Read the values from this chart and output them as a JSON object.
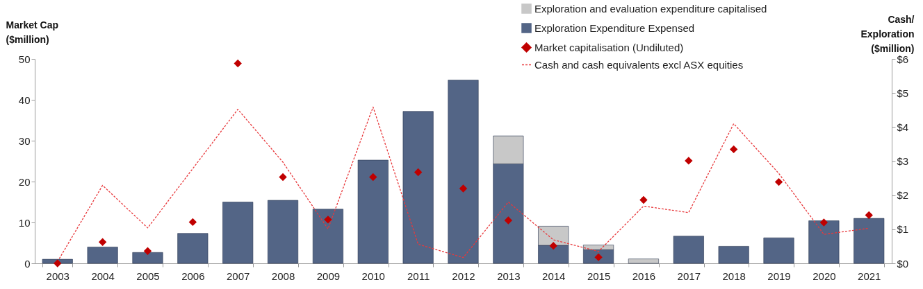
{
  "chart_data": {
    "type": "bar",
    "stacked": true,
    "legend": "top right",
    "categories": [
      "2003",
      "2004",
      "2005",
      "2006",
      "2007",
      "2008",
      "2009",
      "2010",
      "2011",
      "2012",
      "2013",
      "2014",
      "2015",
      "2016",
      "2017",
      "2018",
      "2019",
      "2020",
      "2021"
    ],
    "ylabel": "Market Cap\n($million)",
    "y2label": "Cash/\nExploration\n($million)",
    "ylim": [
      0,
      50
    ],
    "yticks": [
      0,
      10,
      20,
      30,
      40,
      50
    ],
    "y2lim": [
      0,
      6
    ],
    "y2ticks": [
      {
        "value": 0,
        "label": "$0"
      },
      {
        "value": 1,
        "label": "$1"
      },
      {
        "value": 2,
        "label": "$2"
      },
      {
        "value": 3,
        "label": "$3"
      },
      {
        "value": 4,
        "label": "$4"
      },
      {
        "value": 5,
        "label": "$5"
      },
      {
        "value": 6,
        "label": "$6"
      }
    ],
    "series": [
      {
        "name": "Exploration Expenditure Expensed",
        "axis": "y2",
        "color": "#536586",
        "values": [
          0.12,
          0.48,
          0.32,
          0.88,
          1.8,
          1.85,
          1.59,
          3.03,
          4.46,
          5.38,
          2.92,
          0.53,
          0.4,
          null,
          0.8,
          0.5,
          0.75,
          1.25,
          1.32
        ]
      },
      {
        "name": "Exploration and evaluation expenditure capitalised",
        "axis": "y2",
        "color": "#c8c8c8",
        "values": [
          null,
          null,
          null,
          null,
          null,
          null,
          null,
          null,
          null,
          null,
          0.82,
          0.56,
          0.14,
          0.13,
          null,
          null,
          null,
          null,
          null
        ]
      },
      {
        "name": "Market capitalisation (Undiluted)",
        "type": "scatter",
        "axis": "y",
        "marker": "diamond",
        "color": "#c00000",
        "values": [
          0,
          5.2,
          3.0,
          10.1,
          48.9,
          21.1,
          10.7,
          21.1,
          22.3,
          18.3,
          10.5,
          4.3,
          1.5,
          15.5,
          25.1,
          27.9,
          19.9,
          10.0,
          11.8
        ]
      },
      {
        "name": "Cash and cash equivalents excl ASX equities",
        "type": "line",
        "axis": "y2",
        "line_style": "dashed",
        "marker": "none",
        "color": "#e8393c",
        "values": [
          0.05,
          2.29,
          1.04,
          2.78,
          4.52,
          2.97,
          1.01,
          4.59,
          0.56,
          0.17,
          1.8,
          0.69,
          0.35,
          1.68,
          1.49,
          4.1,
          2.64,
          0.85,
          1.03
        ]
      }
    ]
  }
}
